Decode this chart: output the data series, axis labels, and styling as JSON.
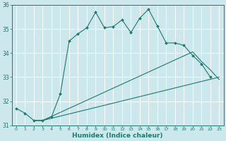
{
  "xlabel": "Humidex (Indice chaleur)",
  "background_color": "#cce8ec",
  "line_color": "#1a7a6e",
  "grid_color": "#b0d4d8",
  "xlim": [
    -0.5,
    23.5
  ],
  "ylim": [
    31,
    36
  ],
  "xticks": [
    0,
    1,
    2,
    3,
    4,
    5,
    6,
    7,
    8,
    9,
    10,
    11,
    12,
    13,
    14,
    15,
    16,
    17,
    18,
    19,
    20,
    21,
    22,
    23
  ],
  "yticks": [
    31,
    32,
    33,
    34,
    35,
    36
  ],
  "line1_x": [
    0,
    1,
    2,
    3,
    4,
    5,
    6,
    7,
    8,
    9,
    10,
    11,
    12,
    13,
    14,
    15,
    16,
    17,
    18,
    19,
    20,
    21,
    22
  ],
  "line1_y": [
    31.7,
    31.5,
    31.2,
    31.2,
    31.35,
    32.3,
    34.5,
    34.8,
    35.05,
    35.7,
    35.05,
    35.1,
    35.38,
    34.85,
    35.45,
    35.82,
    35.12,
    34.42,
    34.42,
    34.32,
    33.9,
    33.55,
    33.0
  ],
  "line2_x": [
    2,
    3,
    23
  ],
  "line2_y": [
    31.2,
    31.2,
    33.0
  ],
  "line3_x": [
    2,
    3,
    20,
    21,
    22,
    23
  ],
  "line3_y": [
    31.2,
    31.2,
    34.05,
    33.65,
    33.3,
    32.9
  ]
}
